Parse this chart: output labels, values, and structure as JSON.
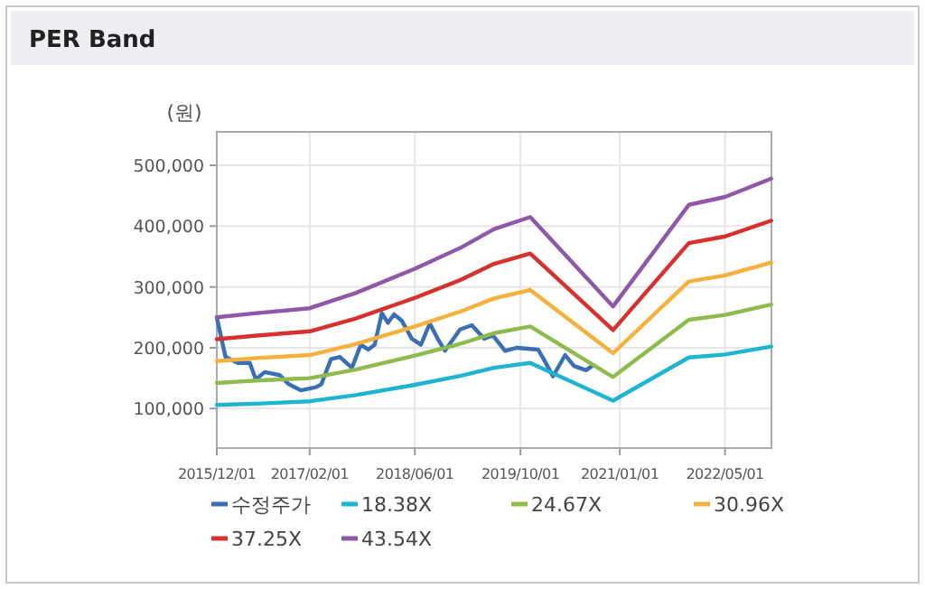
{
  "chart_data": {
    "type": "line",
    "title": "PER Band",
    "ylabel": "(원)",
    "xlim": [
      "2015-12-01",
      "2022-12-01"
    ],
    "xticks": [
      {
        "value": "2015-12-01",
        "label": "2015/12/01"
      },
      {
        "value": "2017-02-01",
        "label": "2017/02/01"
      },
      {
        "value": "2018-06-01",
        "label": "2018/06/01"
      },
      {
        "value": "2019-10-01",
        "label": "2019/10/01"
      },
      {
        "value": "2021-01-01",
        "label": "2021/01/01"
      },
      {
        "value": "2022-05-01",
        "label": "2022/05/01"
      }
    ],
    "ylim": [
      35000,
      555000
    ],
    "yticks": [
      {
        "value": 100000,
        "label": "100,000"
      },
      {
        "value": 200000,
        "label": "200,000"
      },
      {
        "value": 300000,
        "label": "300,000"
      },
      {
        "value": 400000,
        "label": "400,000"
      },
      {
        "value": 500000,
        "label": "500,000"
      }
    ],
    "grid": true,
    "legend": "bottom",
    "marker": "none",
    "line_style": "solid",
    "series": [
      {
        "name": "수정주가",
        "color": "#3a6fb5",
        "x": [
          "2015-12-01",
          "2016-01-10",
          "2016-03-07",
          "2016-05-01",
          "2016-05-29",
          "2016-07-09",
          "2016-09-16",
          "2016-10-28",
          "2016-12-22",
          "2017-03-02",
          "2017-03-27",
          "2017-05-10",
          "2017-06-20",
          "2017-08-15",
          "2017-09-25",
          "2017-10-29",
          "2017-11-28",
          "2017-12-31",
          "2018-01-28",
          "2018-02-25",
          "2018-04-01",
          "2018-05-18",
          "2018-06-29",
          "2018-08-09",
          "2018-09-14",
          "2018-10-18",
          "2018-12-26",
          "2019-02-19",
          "2019-04-16",
          "2019-05-27",
          "2019-07-22",
          "2019-09-15",
          "2019-12-21",
          "2020-01-18",
          "2020-02-28",
          "2020-04-24",
          "2020-06-04",
          "2020-07-29",
          "2020-08-26"
        ],
        "values": [
          250000,
          185000,
          175000,
          175000,
          148000,
          160000,
          155000,
          140000,
          130000,
          135000,
          140000,
          181000,
          185000,
          167000,
          205000,
          197000,
          205000,
          257000,
          241000,
          255000,
          245000,
          215000,
          205000,
          240000,
          215000,
          195000,
          230000,
          237000,
          215000,
          220000,
          195000,
          200000,
          197000,
          180000,
          153000,
          188000,
          170000,
          163000,
          170000
        ]
      },
      {
        "name": "18.38X",
        "color": "#1fb5d0",
        "values": [
          106000,
          108000,
          112000,
          122000,
          139000,
          154000,
          167000,
          175000,
          113000,
          184000,
          189000,
          202000
        ]
      },
      {
        "name": "24.67X",
        "color": "#8fba4d",
        "values": [
          142000,
          146000,
          150000,
          164000,
          187000,
          207000,
          224000,
          235000,
          152000,
          246000,
          254000,
          271000
        ]
      },
      {
        "name": "30.96X",
        "color": "#f5b13d",
        "values": [
          178000,
          183000,
          188000,
          206000,
          235000,
          260000,
          281000,
          295000,
          191000,
          309000,
          319000,
          340000
        ]
      },
      {
        "name": "37.25X",
        "color": "#d6312e",
        "values": [
          214000,
          220000,
          227000,
          248000,
          282000,
          312000,
          338000,
          355000,
          229000,
          372000,
          383000,
          409000
        ]
      },
      {
        "name": "43.54X",
        "color": "#8e57a8",
        "values": [
          250000,
          257000,
          265000,
          290000,
          330000,
          365000,
          395000,
          415000,
          268000,
          435000,
          448000,
          478000
        ]
      }
    ],
    "x": [
      "2015-12-01",
      "2016-06-01",
      "2017-02-01",
      "2017-09-01",
      "2018-06-01",
      "2019-01-01",
      "2019-06-01",
      "2019-11-15",
      "2020-12-01",
      "2021-11-15",
      "2022-05-01",
      "2022-11-30"
    ]
  }
}
